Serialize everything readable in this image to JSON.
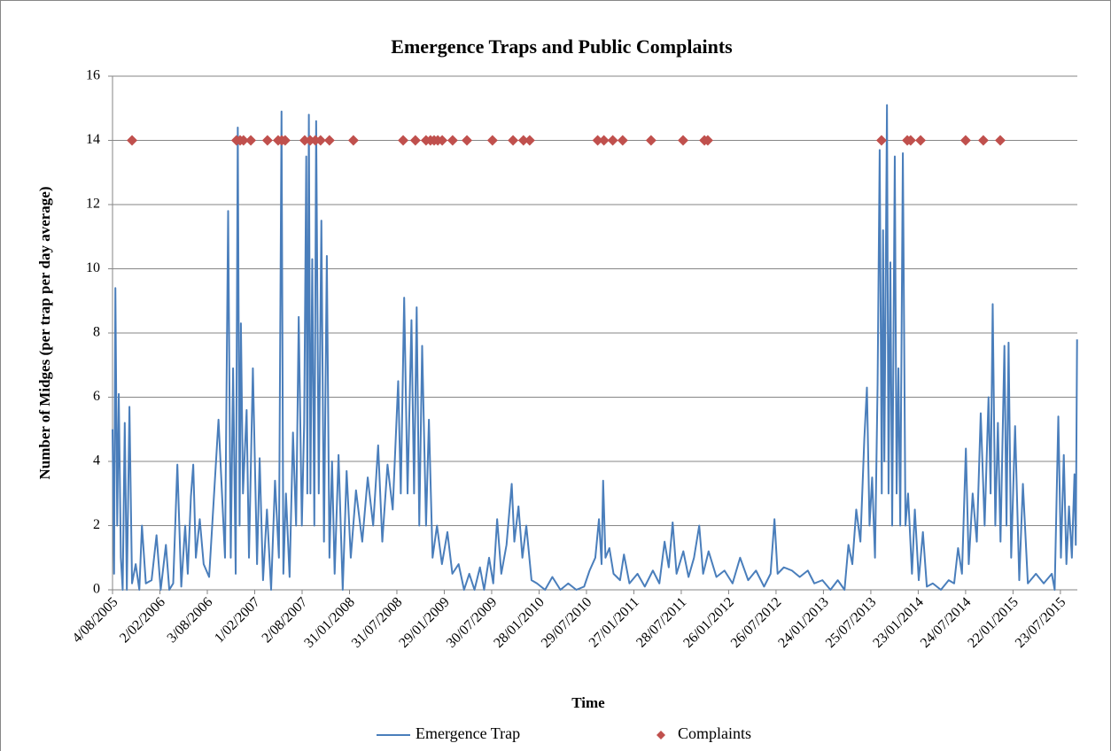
{
  "chart_data": {
    "type": "line",
    "title": "Emergence Traps and Public Complaints",
    "xlabel": "Time",
    "ylabel": "Number of Midges (per trap per day average)",
    "ylim": [
      0,
      16
    ],
    "yticks": [
      0,
      2,
      4,
      6,
      8,
      10,
      12,
      14,
      16
    ],
    "xlim": [
      "2005-08-04",
      "2015-09-26"
    ],
    "xticks": [
      {
        "value": "2005-08-04",
        "label": "4/08/2005"
      },
      {
        "value": "2006-02-02",
        "label": "2/02/2006"
      },
      {
        "value": "2006-08-03",
        "label": "3/08/2006"
      },
      {
        "value": "2007-02-01",
        "label": "1/02/2007"
      },
      {
        "value": "2007-08-02",
        "label": "2/08/2007"
      },
      {
        "value": "2008-01-31",
        "label": "31/01/2008"
      },
      {
        "value": "2008-07-31",
        "label": "31/07/2008"
      },
      {
        "value": "2009-01-29",
        "label": "29/01/2009"
      },
      {
        "value": "2009-07-30",
        "label": "30/07/2009"
      },
      {
        "value": "2010-01-28",
        "label": "28/01/2010"
      },
      {
        "value": "2010-07-29",
        "label": "29/07/2010"
      },
      {
        "value": "2011-01-27",
        "label": "27/01/2011"
      },
      {
        "value": "2011-07-28",
        "label": "28/07/2011"
      },
      {
        "value": "2012-01-26",
        "label": "26/01/2012"
      },
      {
        "value": "2012-07-26",
        "label": "26/07/2012"
      },
      {
        "value": "2013-01-24",
        "label": "24/01/2013"
      },
      {
        "value": "2013-07-25",
        "label": "25/07/2013"
      },
      {
        "value": "2014-01-23",
        "label": "23/01/2014"
      },
      {
        "value": "2014-07-24",
        "label": "24/07/2014"
      },
      {
        "value": "2015-01-22",
        "label": "22/01/2015"
      },
      {
        "value": "2015-07-23",
        "label": "23/07/2015"
      }
    ],
    "grid": true,
    "legend": "bottom",
    "series": [
      {
        "name": "Emergence Trap",
        "color": "#4a7ebb",
        "type": "line",
        "x": [
          "2005-08-04",
          "2005-08-10",
          "2005-08-15",
          "2005-08-22",
          "2005-08-28",
          "2005-09-05",
          "2005-09-12",
          "2005-09-20",
          "2005-09-28",
          "2005-10-08",
          "2005-10-18",
          "2005-11-01",
          "2005-11-15",
          "2005-11-25",
          "2005-12-10",
          "2006-01-01",
          "2006-01-20",
          "2006-02-05",
          "2006-02-25",
          "2006-03-10",
          "2006-03-25",
          "2006-04-10",
          "2006-04-25",
          "2006-05-10",
          "2006-05-20",
          "2006-06-01",
          "2006-06-10",
          "2006-06-20",
          "2006-07-05",
          "2006-07-20",
          "2006-08-10",
          "2006-09-15",
          "2006-10-10",
          "2006-10-22",
          "2006-11-01",
          "2006-11-10",
          "2006-11-20",
          "2006-11-28",
          "2006-12-05",
          "2006-12-10",
          "2006-12-18",
          "2007-01-01",
          "2007-01-10",
          "2007-01-25",
          "2007-02-10",
          "2007-02-20",
          "2007-03-05",
          "2007-03-20",
          "2007-04-05",
          "2007-04-20",
          "2007-05-05",
          "2007-05-15",
          "2007-05-22",
          "2007-06-01",
          "2007-06-15",
          "2007-06-28",
          "2007-07-10",
          "2007-07-20",
          "2007-08-01",
          "2007-08-10",
          "2007-08-18",
          "2007-08-22",
          "2007-08-28",
          "2007-09-03",
          "2007-09-10",
          "2007-09-18",
          "2007-09-25",
          "2007-10-05",
          "2007-10-15",
          "2007-10-25",
          "2007-11-05",
          "2007-11-15",
          "2007-11-25",
          "2007-12-05",
          "2007-12-20",
          "2008-01-05",
          "2008-01-20",
          "2008-02-05",
          "2008-02-25",
          "2008-03-20",
          "2008-04-10",
          "2008-05-01",
          "2008-05-20",
          "2008-06-05",
          "2008-06-25",
          "2008-07-15",
          "2008-08-05",
          "2008-08-15",
          "2008-08-28",
          "2008-09-10",
          "2008-09-25",
          "2008-10-05",
          "2008-10-15",
          "2008-10-25",
          "2008-11-05",
          "2008-11-20",
          "2008-12-01",
          "2008-12-15",
          "2009-01-01",
          "2009-01-20",
          "2009-02-10",
          "2009-03-01",
          "2009-03-25",
          "2009-04-15",
          "2009-05-05",
          "2009-05-25",
          "2009-06-15",
          "2009-07-01",
          "2009-07-20",
          "2009-08-05",
          "2009-08-20",
          "2009-09-05",
          "2009-09-25",
          "2009-10-15",
          "2009-10-25",
          "2009-11-10",
          "2009-11-25",
          "2009-12-10",
          "2009-12-30",
          "2010-01-20",
          "2010-02-20",
          "2010-03-20",
          "2010-04-20",
          "2010-05-20",
          "2010-06-20",
          "2010-07-20",
          "2010-08-10",
          "2010-09-01",
          "2010-09-15",
          "2010-09-25",
          "2010-10-01",
          "2010-10-10",
          "2010-10-25",
          "2010-11-10",
          "2010-12-05",
          "2010-12-20",
          "2011-01-10",
          "2011-02-10",
          "2011-03-10",
          "2011-04-10",
          "2011-05-05",
          "2011-05-25",
          "2011-06-10",
          "2011-06-25",
          "2011-07-10",
          "2011-08-05",
          "2011-08-25",
          "2011-09-15",
          "2011-10-05",
          "2011-10-20",
          "2011-11-10",
          "2011-12-10",
          "2012-01-10",
          "2012-02-10",
          "2012-03-10",
          "2012-04-10",
          "2012-05-10",
          "2012-06-10",
          "2012-07-05",
          "2012-07-20",
          "2012-08-01",
          "2012-08-25",
          "2012-09-25",
          "2012-10-25",
          "2012-11-25",
          "2012-12-20",
          "2013-01-20",
          "2013-02-20",
          "2013-03-20",
          "2013-04-15",
          "2013-04-30",
          "2013-05-15",
          "2013-05-30",
          "2013-06-15",
          "2013-06-30",
          "2013-07-10",
          "2013-07-20",
          "2013-07-30",
          "2013-08-10",
          "2013-08-20",
          "2013-08-28",
          "2013-09-05",
          "2013-09-10",
          "2013-09-15",
          "2013-09-25",
          "2013-10-01",
          "2013-10-08",
          "2013-10-15",
          "2013-10-25",
          "2013-11-01",
          "2013-11-08",
          "2013-11-15",
          "2013-11-25",
          "2013-12-05",
          "2013-12-15",
          "2013-12-30",
          "2014-01-10",
          "2014-01-25",
          "2014-02-10",
          "2014-02-25",
          "2014-03-20",
          "2014-04-20",
          "2014-05-20",
          "2014-06-10",
          "2014-06-25",
          "2014-07-10",
          "2014-07-25",
          "2014-08-05",
          "2014-08-20",
          "2014-09-05",
          "2014-09-20",
          "2014-10-05",
          "2014-10-20",
          "2014-10-28",
          "2014-11-05",
          "2014-11-15",
          "2014-11-25",
          "2014-12-05",
          "2014-12-20",
          "2014-12-28",
          "2015-01-05",
          "2015-01-15",
          "2015-01-30",
          "2015-02-15",
          "2015-03-01",
          "2015-03-20",
          "2015-04-20",
          "2015-05-20",
          "2015-06-20",
          "2015-07-01",
          "2015-07-15",
          "2015-07-25",
          "2015-08-05",
          "2015-08-15",
          "2015-08-25",
          "2015-09-05",
          "2015-09-15",
          "2015-09-20",
          "2015-09-25"
        ],
        "values": [
          5,
          0.5,
          9.4,
          2,
          6.1,
          1,
          0,
          5.2,
          0,
          5.7,
          0.2,
          0.8,
          0,
          2,
          0.2,
          0.3,
          1.7,
          0,
          1.4,
          0,
          0.2,
          3.9,
          0.1,
          2,
          0.5,
          2.9,
          3.9,
          1,
          2.2,
          0.8,
          0.4,
          5.3,
          1,
          11.8,
          1,
          6.9,
          0.5,
          14.4,
          2,
          8.3,
          3,
          5.6,
          1,
          6.9,
          0.8,
          4.1,
          0.3,
          2.5,
          0,
          3.4,
          1,
          14.9,
          0.5,
          3,
          0.4,
          4.9,
          2,
          8.5,
          2,
          5.2,
          13.5,
          3,
          14.8,
          3,
          10.3,
          2,
          14.6,
          3,
          11.5,
          1.5,
          10.4,
          1,
          4,
          0.5,
          4.2,
          0,
          3.7,
          1,
          3.1,
          1.5,
          3.5,
          2,
          4.5,
          1.5,
          3.9,
          2.5,
          6.5,
          3,
          9.1,
          3,
          8.4,
          3,
          8.8,
          2,
          7.6,
          2,
          5.3,
          1,
          2,
          0.8,
          1.8,
          0.5,
          0.8,
          0,
          0.5,
          0,
          0.7,
          0,
          1,
          0.2,
          2.2,
          0.5,
          1.4,
          3.3,
          1.5,
          2.6,
          1,
          2,
          0.3,
          0.2,
          0,
          0.4,
          0,
          0.2,
          0,
          0.1,
          0.6,
          1,
          2.2,
          0.8,
          3.4,
          1,
          1.3,
          0.5,
          0.3,
          1.1,
          0.2,
          0.5,
          0.1,
          0.6,
          0.2,
          1.5,
          0.7,
          2.1,
          0.5,
          1.2,
          0.4,
          1,
          2,
          0.5,
          1.2,
          0.4,
          0.6,
          0.2,
          1,
          0.3,
          0.6,
          0.1,
          0.5,
          2.2,
          0.5,
          0.7,
          0.6,
          0.4,
          0.6,
          0.2,
          0.3,
          0,
          0.3,
          0,
          1.4,
          0.8,
          2.5,
          1.5,
          4.7,
          6.3,
          2,
          3.5,
          1,
          6.4,
          13.7,
          3,
          11.2,
          4,
          15.1,
          3,
          10.2,
          2,
          13.5,
          3,
          6.9,
          2,
          13.6,
          2,
          3,
          0.5,
          2.5,
          0.3,
          1.8,
          0.1,
          0.2,
          0,
          0.3,
          0.2,
          1.3,
          0.5,
          4.4,
          0.8,
          3,
          1.5,
          5.5,
          2,
          6,
          3,
          8.9,
          2,
          5.2,
          1.5,
          7.6,
          2,
          7.7,
          1,
          5.1,
          0.3,
          3.3,
          0.2,
          0.5,
          0.2,
          0.5,
          0,
          5.4,
          1,
          4.2,
          0.8,
          2.6,
          1,
          3.6,
          1.4,
          7.8
        ]
      },
      {
        "name": "Complaints",
        "color": "#c0504d",
        "type": "scatter",
        "marker": "diamond",
        "x": [
          "2005-10-18",
          "2006-11-23",
          "2006-12-07",
          "2006-12-20",
          "2007-01-17",
          "2007-03-22",
          "2007-05-02",
          "2007-05-16",
          "2007-05-29",
          "2007-08-12",
          "2007-09-02",
          "2007-09-22",
          "2007-10-12",
          "2007-11-15",
          "2008-02-15",
          "2008-08-24",
          "2008-10-10",
          "2008-11-20",
          "2008-12-07",
          "2008-12-21",
          "2009-01-04",
          "2009-01-21",
          "2009-03-02",
          "2009-04-26",
          "2009-08-02",
          "2009-10-20",
          "2009-11-29",
          "2009-12-23",
          "2010-09-10",
          "2010-10-04",
          "2010-11-07",
          "2010-12-15",
          "2011-04-03",
          "2011-08-04",
          "2011-10-25",
          "2011-11-07",
          "2013-09-04",
          "2013-12-12",
          "2013-12-25",
          "2014-02-01",
          "2014-07-24",
          "2014-09-30",
          "2014-12-04"
        ],
        "values": [
          14,
          14,
          14,
          14,
          14,
          14,
          14,
          14,
          14,
          14,
          14,
          14,
          14,
          14,
          14,
          14,
          14,
          14,
          14,
          14,
          14,
          14,
          14,
          14,
          14,
          14,
          14,
          14,
          14,
          14,
          14,
          14,
          14,
          14,
          14,
          14,
          14,
          14,
          14,
          14,
          14,
          14,
          14
        ]
      }
    ]
  }
}
